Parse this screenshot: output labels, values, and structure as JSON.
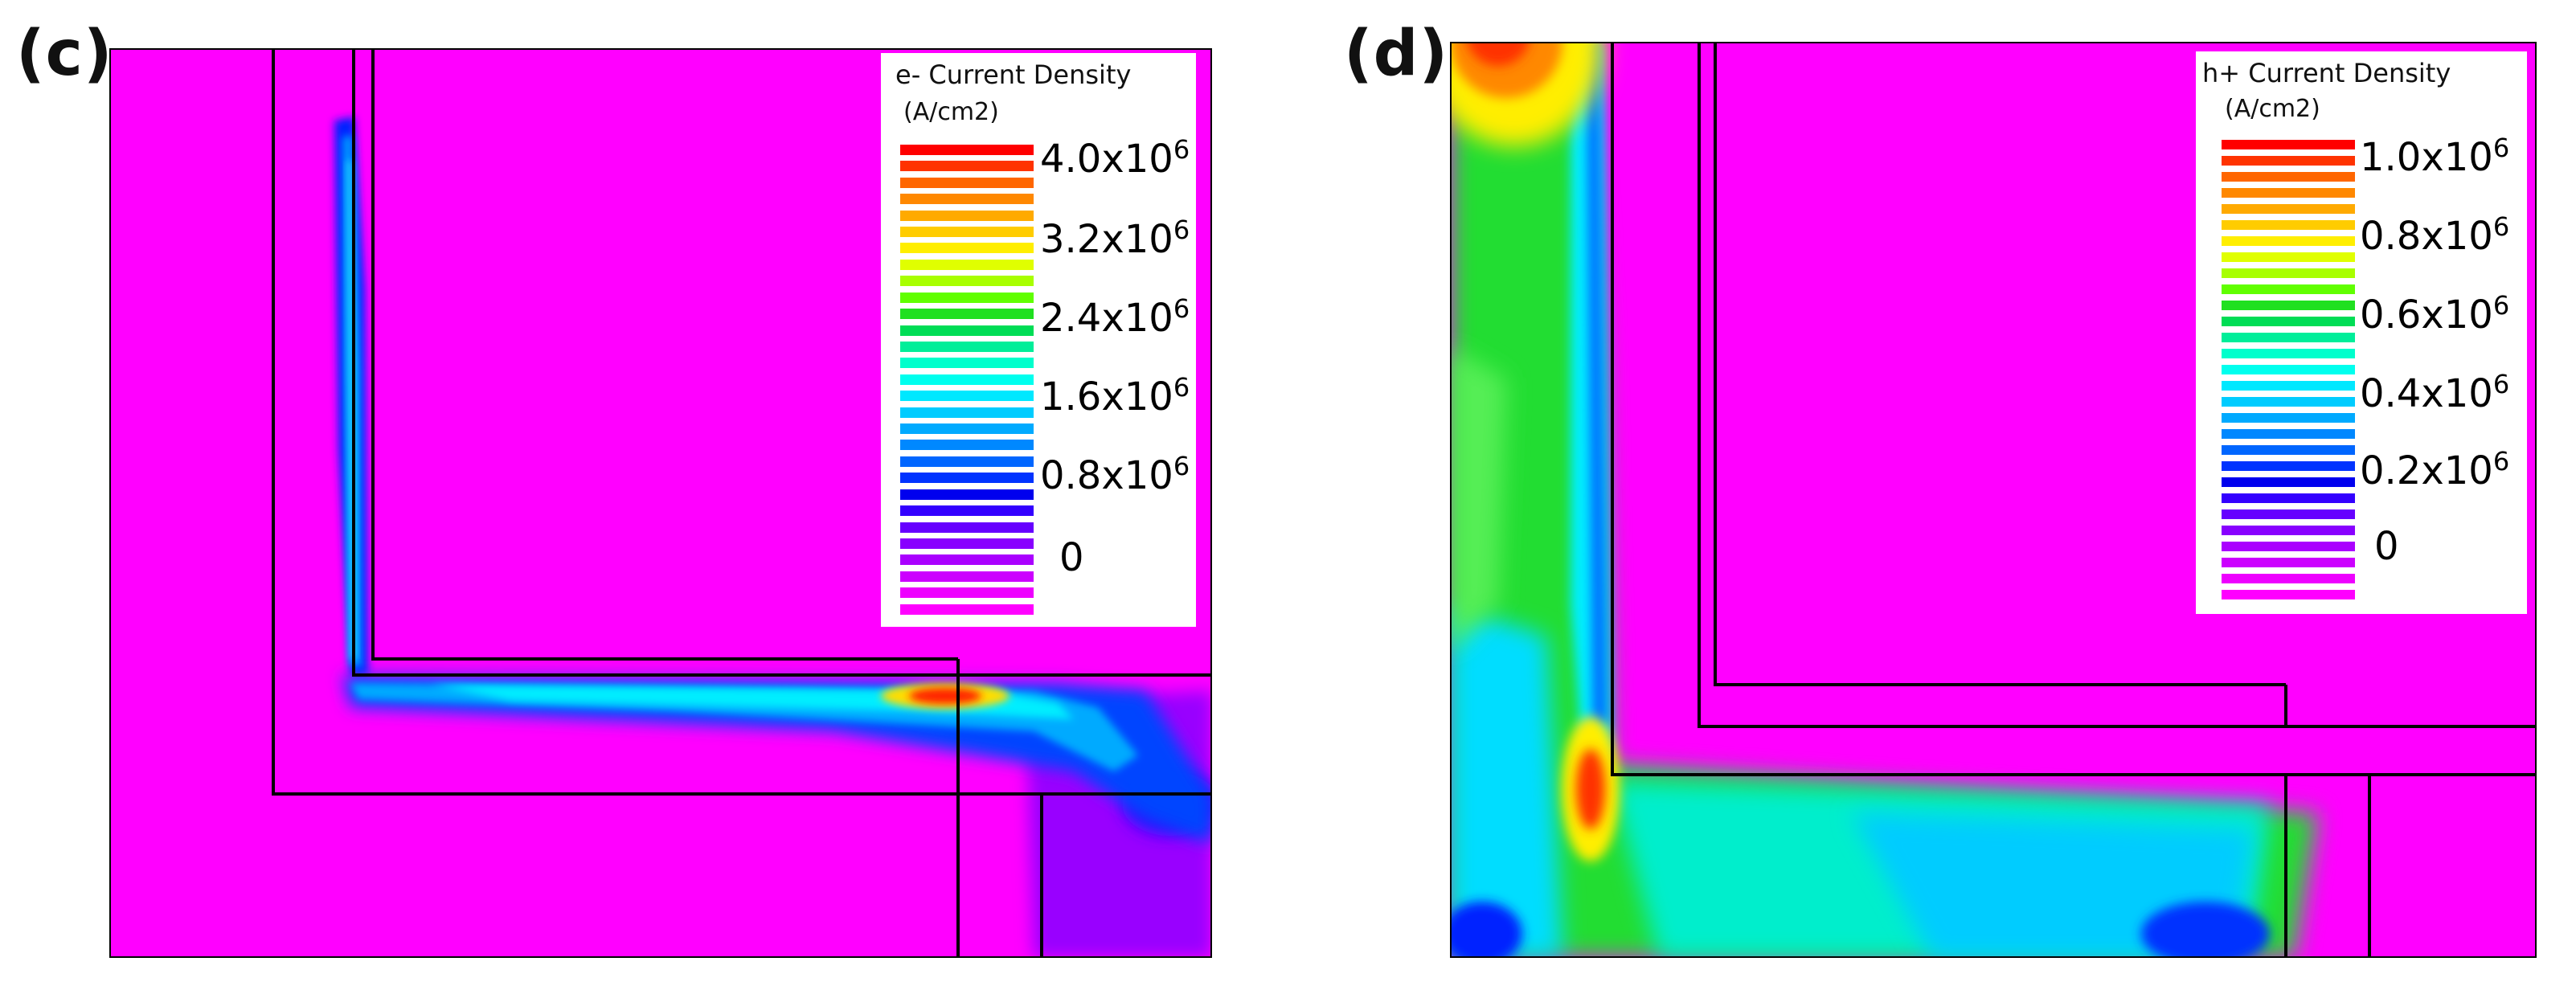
{
  "chart_data": [
    {
      "type": "heatmap",
      "panel_label": "(c)",
      "legend_title": "e- Current Density",
      "legend_unit": "(A/cm2)",
      "scale_min": 0,
      "scale_max": 4.0,
      "scale_exponent": "6",
      "ticks": [
        {
          "mantissa": "4.0x10",
          "exp": "6",
          "value": 4.0
        },
        {
          "mantissa": "3.2x10",
          "exp": "6",
          "value": 3.2
        },
        {
          "mantissa": "2.4x10",
          "exp": "6",
          "value": 2.4
        },
        {
          "mantissa": "1.6x10",
          "exp": "6",
          "value": 1.6
        },
        {
          "mantissa": "0.8x10",
          "exp": "6",
          "value": 0.8
        },
        {
          "mantissa": "0",
          "exp": "",
          "value": 0
        }
      ],
      "background_color": "#ff00ff",
      "peak_color": "#ff0000"
    },
    {
      "type": "heatmap",
      "panel_label": "(d)",
      "legend_title": "h+ Current Density",
      "legend_unit": "(A/cm2)",
      "scale_min": 0,
      "scale_max": 1.0,
      "scale_exponent": "6",
      "ticks": [
        {
          "mantissa": "1.0x10",
          "exp": "6",
          "value": 1.0
        },
        {
          "mantissa": "0.8x10",
          "exp": "6",
          "value": 0.8
        },
        {
          "mantissa": "0.6x10",
          "exp": "6",
          "value": 0.6
        },
        {
          "mantissa": "0.4x10",
          "exp": "6",
          "value": 0.4
        },
        {
          "mantissa": "0.2x10",
          "exp": "6",
          "value": 0.2
        },
        {
          "mantissa": "0",
          "exp": "",
          "value": 0
        }
      ],
      "background_color": "#ff00ff",
      "peak_color": "#ff0000"
    }
  ],
  "colorbar_colors": [
    "#ff0000",
    "#ff3300",
    "#ff6600",
    "#ff8800",
    "#ffaa00",
    "#ffcc00",
    "#ffee00",
    "#e0ff00",
    "#a8ff00",
    "#60ff00",
    "#20e020",
    "#00dd55",
    "#00ee99",
    "#00ffcc",
    "#00ffee",
    "#00e8ff",
    "#00ccff",
    "#00aaff",
    "#0088ff",
    "#0066ff",
    "#0033ff",
    "#0000ee",
    "#3300ff",
    "#6600ff",
    "#8800ff",
    "#aa00ff",
    "#cc00ff",
    "#ee00ff",
    "#ff00ff"
  ]
}
